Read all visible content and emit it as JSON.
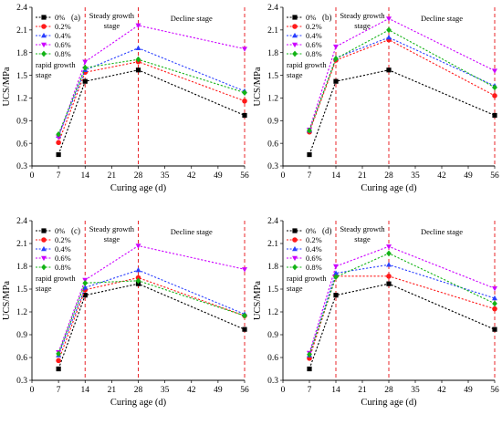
{
  "colors": {
    "axis": "#000000",
    "stage_divider": "#e8252a",
    "series": [
      "#000000",
      "#ff0000",
      "#0000ff",
      "#cc00cc",
      "#00aa00"
    ],
    "series_display": [
      "#000000",
      "#ff1a1a",
      "#2a3fff",
      "#cc00ff",
      "#13b316"
    ]
  },
  "chart_data": [
    {
      "type": "line",
      "panel_label": "(a)",
      "xlabel": "Curing age (d)",
      "ylabel": "UCS/MPa",
      "xlim": [
        0,
        56
      ],
      "ylim": [
        0.3,
        2.4
      ],
      "xticks": [
        "0",
        "7",
        "14",
        "21",
        "28",
        "35",
        "42",
        "49",
        "56"
      ],
      "yticks": [
        "0.3",
        "0.6",
        "0.9",
        "1.2",
        "1.5",
        "1.8",
        "2.1",
        "2.4"
      ],
      "grid": false,
      "legend_position": "top-left",
      "stage_dividers": [
        14,
        28,
        56
      ],
      "stage_labels": [
        "rapid growth stage",
        "Steady growth stage",
        "Decline stage"
      ],
      "x": [
        7,
        14,
        28,
        56
      ],
      "series": [
        {
          "name": "0%",
          "marker": "square",
          "values": [
            0.45,
            1.42,
            1.57,
            0.97
          ]
        },
        {
          "name": "0.2%",
          "marker": "circle",
          "values": [
            0.61,
            1.54,
            1.68,
            1.16
          ]
        },
        {
          "name": "0.4%",
          "marker": "triangle-up",
          "values": [
            0.7,
            1.57,
            1.86,
            1.29
          ]
        },
        {
          "name": "0.6%",
          "marker": "triangle-down",
          "values": [
            0.68,
            1.68,
            2.16,
            1.85
          ]
        },
        {
          "name": "0.8%",
          "marker": "diamond",
          "values": [
            0.72,
            1.6,
            1.71,
            1.27
          ]
        }
      ]
    },
    {
      "type": "line",
      "panel_label": "(b)",
      "xlabel": "Curing age (d)",
      "ylabel": "UCS/MPa",
      "xlim": [
        0,
        56
      ],
      "ylim": [
        0.3,
        2.4
      ],
      "xticks": [
        "0",
        "7",
        "14",
        "21",
        "28",
        "35",
        "42",
        "49",
        "56"
      ],
      "yticks": [
        "0.3",
        "0.6",
        "0.9",
        "1.2",
        "1.5",
        "1.8",
        "2.1",
        "2.4"
      ],
      "grid": false,
      "legend_position": "top-left",
      "stage_dividers": [
        14,
        28,
        56
      ],
      "stage_labels": [
        "rapid growth stage",
        "Steady growth stage",
        "Decline stage"
      ],
      "x": [
        7,
        14,
        28,
        56
      ],
      "series": [
        {
          "name": "0%",
          "marker": "square",
          "values": [
            0.45,
            1.42,
            1.57,
            0.97
          ]
        },
        {
          "name": "0.2%",
          "marker": "circle",
          "values": [
            0.75,
            1.7,
            1.97,
            1.23
          ]
        },
        {
          "name": "0.4%",
          "marker": "triangle-up",
          "values": [
            0.77,
            1.73,
            2.0,
            1.36
          ]
        },
        {
          "name": "0.6%",
          "marker": "triangle-down",
          "values": [
            0.78,
            1.88,
            2.25,
            1.56
          ]
        },
        {
          "name": "0.8%",
          "marker": "diamond",
          "values": [
            0.77,
            1.72,
            2.1,
            1.34
          ]
        }
      ]
    },
    {
      "type": "line",
      "panel_label": "(c)",
      "xlabel": "Curing age (d)",
      "ylabel": "UCS/MPa",
      "xlim": [
        0,
        56
      ],
      "ylim": [
        0.3,
        2.4
      ],
      "xticks": [
        "0",
        "7",
        "14",
        "21",
        "28",
        "35",
        "42",
        "49",
        "56"
      ],
      "yticks": [
        "0.3",
        "0.6",
        "0.9",
        "1.2",
        "1.5",
        "1.8",
        "2.1",
        "2.4"
      ],
      "grid": false,
      "legend_position": "top-left",
      "stage_dividers": [
        14,
        28,
        56
      ],
      "stage_labels": [
        "rapid growth stage",
        "Steady growth stage",
        "Decline stage"
      ],
      "x": [
        7,
        14,
        28,
        56
      ],
      "series": [
        {
          "name": "0%",
          "marker": "square",
          "values": [
            0.45,
            1.42,
            1.57,
            0.97
          ]
        },
        {
          "name": "0.2%",
          "marker": "circle",
          "values": [
            0.56,
            1.49,
            1.65,
            1.15
          ]
        },
        {
          "name": "0.4%",
          "marker": "triangle-up",
          "values": [
            0.63,
            1.52,
            1.75,
            1.17
          ]
        },
        {
          "name": "0.6%",
          "marker": "triangle-down",
          "values": [
            0.67,
            1.62,
            2.07,
            1.76
          ]
        },
        {
          "name": "0.8%",
          "marker": "diamond",
          "values": [
            0.65,
            1.58,
            1.61,
            1.15
          ]
        }
      ]
    },
    {
      "type": "line",
      "panel_label": "(d)",
      "xlabel": "Curing age (d)",
      "ylabel": "UCS/MPa",
      "xlim": [
        0,
        56
      ],
      "ylim": [
        0.3,
        2.4
      ],
      "xticks": [
        "0",
        "7",
        "14",
        "21",
        "28",
        "35",
        "42",
        "49",
        "56"
      ],
      "yticks": [
        "0.3",
        "0.6",
        "0.9",
        "1.2",
        "1.5",
        "1.8",
        "2.1",
        "2.4"
      ],
      "grid": false,
      "legend_position": "top-left",
      "stage_dividers": [
        14,
        28,
        56
      ],
      "stage_labels": [
        "rapid growth stage",
        "Steady growth stage",
        "Decline stage"
      ],
      "x": [
        7,
        14,
        28,
        56
      ],
      "series": [
        {
          "name": "0%",
          "marker": "square",
          "values": [
            0.45,
            1.42,
            1.57,
            0.97
          ]
        },
        {
          "name": "0.2%",
          "marker": "circle",
          "values": [
            0.59,
            1.67,
            1.67,
            1.24
          ]
        },
        {
          "name": "0.4%",
          "marker": "triangle-up",
          "values": [
            0.63,
            1.71,
            1.82,
            1.38
          ]
        },
        {
          "name": "0.6%",
          "marker": "triangle-down",
          "values": [
            0.66,
            1.8,
            2.06,
            1.51
          ]
        },
        {
          "name": "0.8%",
          "marker": "diamond",
          "values": [
            0.64,
            1.66,
            1.97,
            1.31
          ]
        }
      ]
    }
  ]
}
